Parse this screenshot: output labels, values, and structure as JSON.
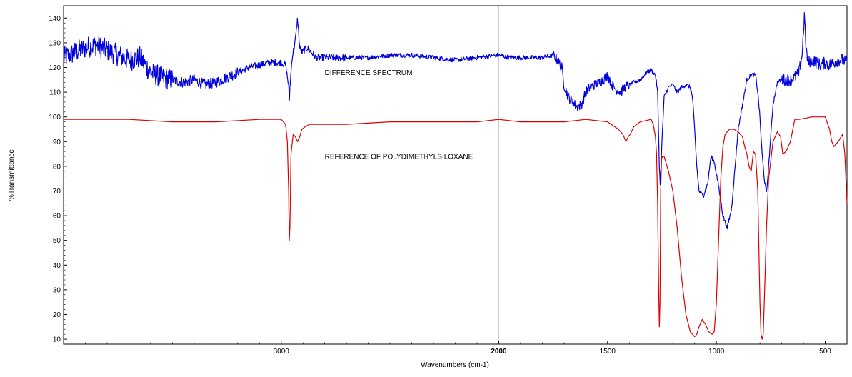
{
  "chart_data": {
    "type": "line",
    "title": "",
    "xlabel": "Wavenumbers (cm-1)",
    "ylabel": "%Transmittance",
    "x_reversed": true,
    "xlim": [
      4000,
      400
    ],
    "ylim": [
      8,
      145
    ],
    "x_ticks": [
      3000,
      2000,
      1500,
      1000,
      500
    ],
    "x_tick_labels": [
      "3000",
      "2000",
      "1500",
      "1000",
      "500"
    ],
    "y_ticks": [
      10,
      20,
      30,
      40,
      50,
      60,
      70,
      80,
      90,
      100,
      110,
      120,
      130,
      140
    ],
    "y_tick_labels": [
      "10",
      "20",
      "30",
      "40",
      "50",
      "60",
      "70",
      "80",
      "90",
      "100",
      "110",
      "120",
      "130",
      "140"
    ],
    "vertical_marker_x": 2000,
    "annotations": [
      {
        "text": "DIFFERENCE SPECTRUM",
        "x": 2800,
        "y": 117
      },
      {
        "text": "REFERENCE OF POLYDIMETHYLSILOXANE",
        "x": 2800,
        "y": 83
      }
    ],
    "series": [
      {
        "color": "#0000dd",
        "noisy": true,
        "x": [
          4000,
          3950,
          3900,
          3850,
          3800,
          3750,
          3700,
          3650,
          3600,
          3550,
          3500,
          3450,
          3400,
          3350,
          3300,
          3250,
          3200,
          3150,
          3100,
          3050,
          3000,
          2980,
          2965,
          2963,
          2960,
          2950,
          2935,
          2925,
          2915,
          2905,
          2895,
          2880,
          2860,
          2840,
          2800,
          2700,
          2600,
          2500,
          2400,
          2300,
          2200,
          2100,
          2000,
          1950,
          1900,
          1850,
          1800,
          1750,
          1730,
          1710,
          1700,
          1680,
          1660,
          1640,
          1620,
          1600,
          1580,
          1560,
          1540,
          1520,
          1500,
          1480,
          1460,
          1440,
          1420,
          1400,
          1380,
          1350,
          1320,
          1300,
          1280,
          1270,
          1262,
          1258,
          1250,
          1240,
          1220,
          1200,
          1180,
          1160,
          1140,
          1120,
          1110,
          1100,
          1090,
          1080,
          1060,
          1040,
          1025,
          1010,
          990,
          970,
          950,
          930,
          900,
          880,
          860,
          840,
          820,
          810,
          800,
          790,
          780,
          770,
          760,
          740,
          720,
          700,
          680,
          660,
          640,
          620,
          605,
          600,
          595,
          590,
          580,
          560,
          540,
          520,
          500,
          480,
          460,
          440,
          420,
          400
        ],
        "y": [
          124,
          126,
          128,
          129,
          127,
          125,
          123,
          124,
          118,
          116,
          115,
          114,
          115,
          113,
          114,
          116,
          118,
          120,
          121,
          122,
          122,
          121,
          112,
          105,
          112,
          124,
          131,
          140,
          128,
          126,
          127,
          128,
          126,
          124,
          124,
          124,
          124,
          125,
          125,
          124,
          123,
          124,
          125,
          124,
          124,
          124,
          124,
          125,
          123,
          120,
          113,
          108,
          106,
          104,
          105,
          110,
          112,
          113,
          114,
          115,
          117,
          113,
          111,
          110,
          112,
          113,
          114,
          115,
          118,
          119,
          117,
          110,
          80,
          73,
          90,
          108,
          112,
          113,
          110,
          112,
          113,
          112,
          108,
          95,
          80,
          70,
          68,
          73,
          84,
          82,
          72,
          60,
          55,
          63,
          95,
          105,
          115,
          117,
          117,
          110,
          100,
          85,
          75,
          69,
          80,
          105,
          114,
          115,
          115,
          115,
          116,
          118,
          126,
          135,
          142,
          130,
          122,
          123,
          122,
          121,
          122,
          121,
          122,
          123,
          123,
          122
        ]
      },
      {
        "color": "#dd0000",
        "noisy": false,
        "x": [
          4000,
          3700,
          3500,
          3300,
          3100,
          3000,
          2990,
          2980,
          2972,
          2966,
          2963,
          2960,
          2955,
          2945,
          2935,
          2925,
          2915,
          2905,
          2890,
          2870,
          2850,
          2800,
          2700,
          2500,
          2300,
          2100,
          2000,
          1900,
          1800,
          1700,
          1600,
          1500,
          1450,
          1430,
          1415,
          1410,
          1405,
          1395,
          1380,
          1350,
          1300,
          1290,
          1280,
          1275,
          1270,
          1265,
          1262,
          1259,
          1256,
          1252,
          1248,
          1240,
          1230,
          1220,
          1200,
          1180,
          1160,
          1140,
          1120,
          1100,
          1090,
          1080,
          1065,
          1050,
          1035,
          1020,
          1010,
          1000,
          990,
          980,
          970,
          960,
          940,
          920,
          900,
          880,
          870,
          860,
          850,
          840,
          830,
          820,
          810,
          800,
          795,
          790,
          785,
          780,
          770,
          760,
          740,
          720,
          705,
          695,
          680,
          660,
          640,
          620,
          560,
          500,
          480,
          470,
          460,
          440,
          420,
          410,
          400
        ],
        "y": [
          99,
          99,
          98,
          98,
          99,
          99,
          98,
          97,
          90,
          70,
          50,
          55,
          85,
          93,
          92,
          90,
          92,
          95,
          96,
          97,
          97,
          97,
          97,
          98,
          98,
          98,
          99,
          98,
          98,
          98,
          99,
          98,
          95,
          93,
          90,
          91,
          92,
          93,
          96,
          98,
          99,
          97,
          92,
          85,
          65,
          30,
          15,
          25,
          70,
          83,
          84,
          84,
          81,
          78,
          70,
          55,
          35,
          20,
          13,
          11,
          12,
          15,
          18,
          16,
          13,
          12,
          13,
          25,
          50,
          75,
          88,
          93,
          95,
          95,
          94,
          92,
          88,
          85,
          80,
          78,
          86,
          85,
          70,
          25,
          12,
          10,
          12,
          25,
          55,
          75,
          90,
          94,
          92,
          85,
          86,
          90,
          99,
          99,
          100,
          100,
          95,
          90,
          88,
          90,
          93,
          85,
          65
        ]
      }
    ]
  }
}
